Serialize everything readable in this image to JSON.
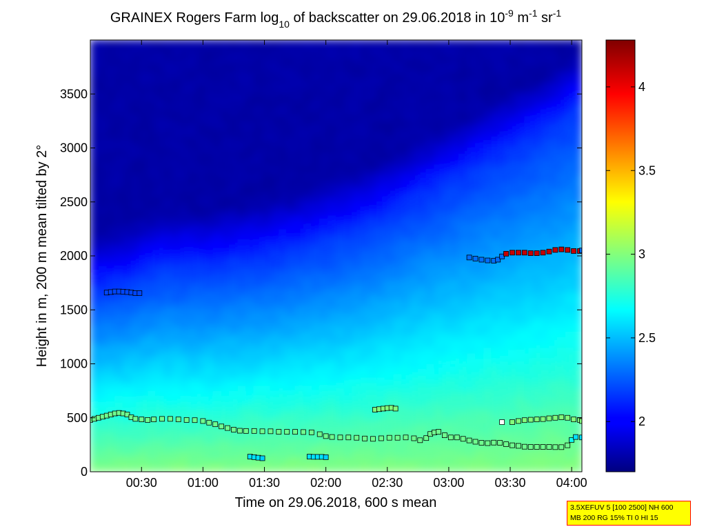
{
  "chart_data": {
    "type": "heatmap",
    "title": {
      "prefix": "GRAINEX Rogers Farm log",
      "log_base": "10",
      "middle": " of backscatter on 29.06.2018 in 10",
      "exp1": "-9",
      "unit1": " m",
      "exp2": "-1",
      "unit2": " sr",
      "exp3": "-1"
    },
    "xlabel": "Time on 29.06.2018, 600 s mean",
    "ylabel": "Height in m, 200 m mean tilted by 2°",
    "x_unit": "minutes after 00:00",
    "xlim": [
      5,
      245
    ],
    "ylim": [
      0,
      4000
    ],
    "x_ticks": [
      {
        "value": 30,
        "label": "00:30"
      },
      {
        "value": 60,
        "label": "01:00"
      },
      {
        "value": 90,
        "label": "01:30"
      },
      {
        "value": 120,
        "label": "02:00"
      },
      {
        "value": 150,
        "label": "02:30"
      },
      {
        "value": 180,
        "label": "03:00"
      },
      {
        "value": 210,
        "label": "03:30"
      },
      {
        "value": 240,
        "label": "04:00"
      }
    ],
    "y_ticks": [
      {
        "value": 0,
        "label": "0"
      },
      {
        "value": 500,
        "label": "500"
      },
      {
        "value": 1000,
        "label": "1000"
      },
      {
        "value": 1500,
        "label": "1500"
      },
      {
        "value": 2000,
        "label": "2000"
      },
      {
        "value": 2500,
        "label": "2500"
      },
      {
        "value": 3000,
        "label": "3000"
      },
      {
        "value": 3500,
        "label": "3500"
      }
    ],
    "colorbar": {
      "min": 1.7,
      "max": 4.28,
      "ticks": [
        {
          "value": 2,
          "label": "2"
        },
        {
          "value": 2.5,
          "label": "2.5"
        },
        {
          "value": 3,
          "label": "3"
        },
        {
          "value": 3.5,
          "label": "3.5"
        },
        {
          "value": 4,
          "label": "4"
        }
      ]
    },
    "field_profile": {
      "background_base": 3.0,
      "background_top": 1.8,
      "boundary_height": [
        {
          "t": 5,
          "h": 1700
        },
        {
          "t": 20,
          "h": 1750
        },
        {
          "t": 40,
          "h": 1900
        },
        {
          "t": 60,
          "h": 1900
        },
        {
          "t": 90,
          "h": 2000
        },
        {
          "t": 110,
          "h": 2100
        },
        {
          "t": 140,
          "h": 2300
        },
        {
          "t": 170,
          "h": 2600
        },
        {
          "t": 200,
          "h": 2900
        },
        {
          "t": 230,
          "h": 3200
        },
        {
          "t": 245,
          "h": 3400
        }
      ]
    },
    "series": [
      {
        "points": [
          [
            5,
            480
          ],
          [
            7,
            490
          ],
          [
            9,
            500
          ],
          [
            11,
            510
          ],
          [
            13,
            520
          ],
          [
            15,
            530
          ],
          [
            17,
            540
          ],
          [
            19,
            545
          ],
          [
            21,
            540
          ],
          [
            23,
            530
          ],
          [
            25,
            505
          ],
          [
            27,
            490
          ],
          [
            30,
            485
          ],
          [
            33,
            480
          ],
          [
            36,
            485
          ],
          [
            40,
            490
          ],
          [
            44,
            490
          ],
          [
            48,
            485
          ],
          [
            52,
            480
          ],
          [
            56,
            478
          ],
          [
            60,
            470
          ],
          [
            63,
            455
          ],
          [
            66,
            440
          ],
          [
            69,
            420
          ],
          [
            72,
            405
          ],
          [
            75,
            390
          ],
          [
            78,
            380
          ],
          [
            81,
            378
          ],
          [
            85,
            378
          ],
          [
            89,
            375
          ],
          [
            93,
            375
          ],
          [
            97,
            370
          ],
          [
            101,
            370
          ],
          [
            105,
            370
          ],
          [
            109,
            368
          ],
          [
            113,
            365
          ],
          [
            117,
            348
          ],
          [
            120,
            330
          ],
          [
            123,
            322
          ],
          [
            127,
            318
          ],
          [
            131,
            318
          ],
          [
            135,
            315
          ],
          [
            139,
            308
          ],
          [
            143,
            305
          ],
          [
            147,
            310
          ],
          [
            151,
            315
          ],
          [
            155,
            315
          ],
          [
            159,
            318
          ],
          [
            163,
            310
          ],
          [
            166,
            292
          ],
          [
            169,
            312
          ],
          [
            171,
            350
          ],
          [
            173,
            365
          ],
          [
            175,
            370
          ],
          [
            178,
            338
          ],
          [
            181,
            318
          ],
          [
            184,
            318
          ],
          [
            187,
            305
          ],
          [
            190,
            290
          ],
          [
            193,
            278
          ],
          [
            196,
            268
          ],
          [
            199,
            265
          ],
          [
            202,
            270
          ],
          [
            205,
            268
          ],
          [
            208,
            255
          ],
          [
            211,
            245
          ],
          [
            214,
            240
          ],
          [
            217,
            232
          ],
          [
            220,
            230
          ],
          [
            223,
            230
          ],
          [
            226,
            230
          ],
          [
            229,
            230
          ],
          [
            232,
            228
          ],
          [
            235,
            228
          ],
          [
            238,
            245
          ],
          [
            240,
            295
          ],
          [
            242,
            322
          ],
          [
            245,
            318
          ]
        ],
        "values": [
          2.95,
          2.95,
          2.95,
          2.95,
          2.95,
          2.95,
          2.95,
          2.95,
          2.95,
          2.95,
          2.95,
          2.95,
          2.95,
          2.95,
          2.95,
          2.95,
          2.95,
          2.95,
          2.95,
          2.95,
          2.95,
          2.95,
          2.95,
          2.95,
          2.95,
          2.95,
          2.95,
          2.95,
          2.95,
          2.95,
          2.95,
          2.95,
          2.95,
          2.95,
          2.95,
          2.95,
          2.95,
          2.95,
          2.95,
          2.95,
          2.95,
          2.95,
          2.95,
          2.95,
          2.95,
          2.95,
          2.95,
          2.95,
          2.95,
          2.95,
          2.95,
          2.95,
          2.95,
          2.95,
          2.95,
          2.95,
          2.95,
          2.95,
          2.95,
          2.95,
          2.95,
          2.95,
          2.95,
          2.95,
          2.95,
          2.95,
          2.95,
          2.95,
          2.95,
          2.95,
          2.95,
          2.95,
          2.95,
          2.95,
          2.95,
          2.7,
          2.6,
          2.6
        ]
      },
      {
        "points": [
          [
            211,
            460
          ],
          [
            214,
            470
          ],
          [
            217,
            478
          ],
          [
            220,
            482
          ],
          [
            223,
            485
          ],
          [
            226,
            488
          ],
          [
            229,
            495
          ],
          [
            232,
            500
          ],
          [
            235,
            505
          ],
          [
            238,
            500
          ],
          [
            241,
            485
          ],
          [
            244,
            480
          ],
          [
            245,
            470
          ]
        ],
        "values": [
          3.0,
          3.0,
          3.0,
          3.0,
          3.0,
          3.0,
          3.0,
          3.0,
          3.0,
          3.0,
          3.0,
          3.0,
          3.0
        ]
      },
      {
        "points": [
          [
            206,
            460
          ]
        ],
        "values": [
          3.6
        ]
      },
      {
        "points": [
          [
            144,
            575
          ],
          [
            146,
            580
          ],
          [
            148,
            585
          ],
          [
            150,
            590
          ],
          [
            152,
            592
          ],
          [
            154,
            585
          ]
        ],
        "values": [
          3.0,
          3.0,
          3.0,
          3.0,
          3.0,
          3.0
        ]
      },
      {
        "points": [
          [
            83,
            140
          ],
          [
            85,
            135
          ],
          [
            87,
            130
          ],
          [
            89,
            125
          ]
        ],
        "values": [
          2.6,
          2.6,
          2.6,
          2.55
        ]
      },
      {
        "points": [
          [
            112,
            140
          ],
          [
            114,
            138
          ],
          [
            116,
            138
          ],
          [
            118,
            138
          ],
          [
            120,
            135
          ]
        ],
        "values": [
          2.6,
          2.6,
          2.6,
          2.6,
          2.55
        ]
      },
      {
        "points": [
          [
            13,
            1660
          ],
          [
            15,
            1665
          ],
          [
            17,
            1670
          ],
          [
            19,
            1670
          ],
          [
            21,
            1668
          ],
          [
            23,
            1665
          ],
          [
            25,
            1660
          ],
          [
            27,
            1655
          ],
          [
            29,
            1655
          ]
        ],
        "values": [
          2.2,
          2.2,
          2.2,
          2.2,
          2.2,
          2.2,
          2.2,
          2.2,
          2.2
        ]
      },
      {
        "points": [
          [
            190,
            1985
          ],
          [
            193,
            1975
          ],
          [
            196,
            1965
          ],
          [
            199,
            1958
          ],
          [
            202,
            1955
          ],
          [
            204,
            1965
          ],
          [
            206,
            1995
          ],
          [
            208,
            2020
          ],
          [
            211,
            2030
          ],
          [
            214,
            2030
          ],
          [
            217,
            2030
          ],
          [
            220,
            2025
          ],
          [
            223,
            2025
          ],
          [
            226,
            2030
          ],
          [
            229,
            2040
          ],
          [
            232,
            2055
          ],
          [
            235,
            2060
          ],
          [
            238,
            2055
          ],
          [
            241,
            2045
          ],
          [
            244,
            2045
          ],
          [
            245,
            2050
          ]
        ],
        "values": [
          2.3,
          2.3,
          2.3,
          2.3,
          2.3,
          2.3,
          2.3,
          4.1,
          4.1,
          4.1,
          4.1,
          4.1,
          4.1,
          4.1,
          4.1,
          4.1,
          4.1,
          4.1,
          4.1,
          4.1,
          2.3
        ]
      }
    ]
  },
  "info_box": {
    "line1": "3.5XEFUV 5 [100 2500] NH 600",
    "line2": "MB 200 RG 15% TI 0 HI 15"
  }
}
